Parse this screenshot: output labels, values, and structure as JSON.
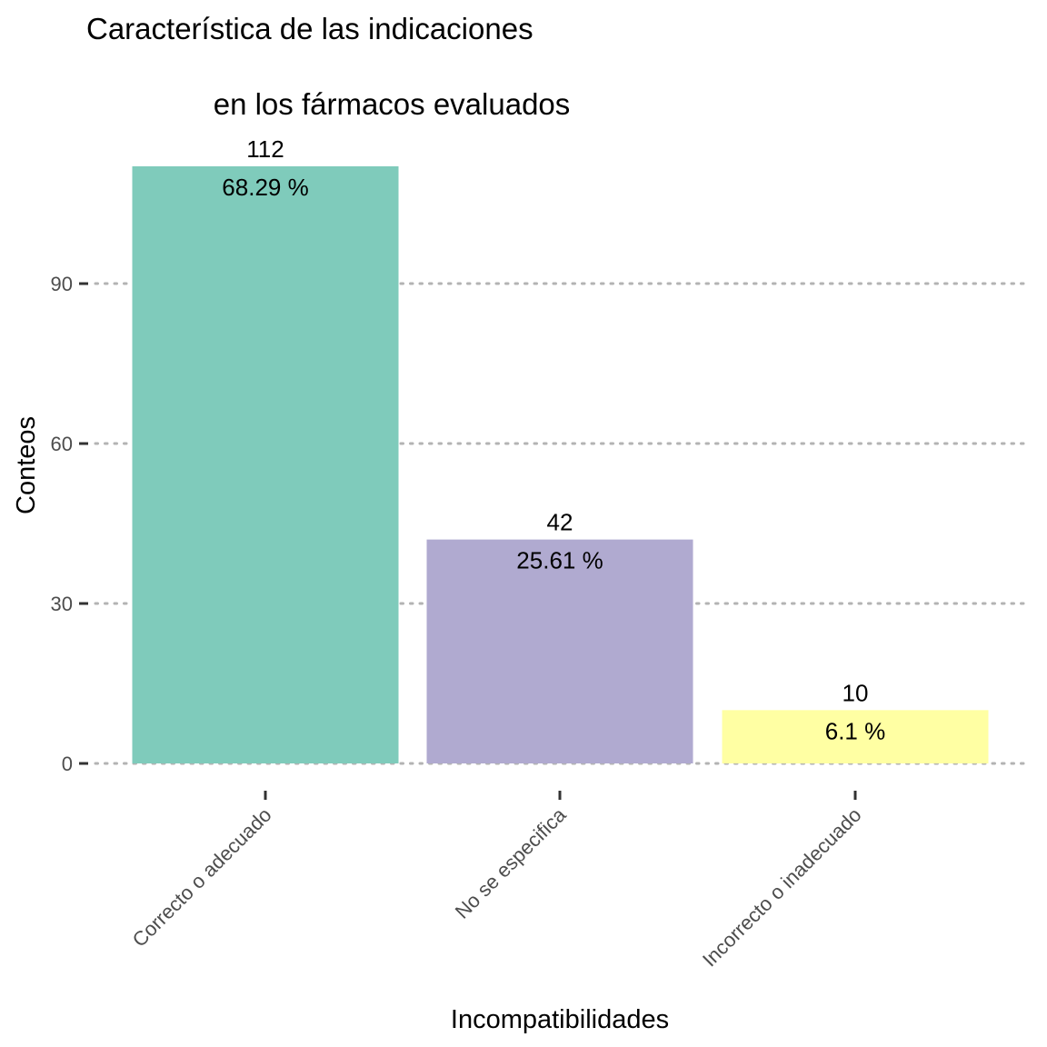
{
  "chart_data": {
    "type": "bar",
    "title_lines": [
      "Característica de las indicaciones",
      "en los fármacos evaluados"
    ],
    "xlabel": "Incompatibilidades",
    "ylabel": "Conteos",
    "categories": [
      "Correcto o adecuado",
      "No se especifica",
      "Incorrecto o inadecuado"
    ],
    "values": [
      112,
      42,
      10
    ],
    "percent_labels": [
      "68.29 %",
      "25.61 %",
      "6.1 %"
    ],
    "colors": [
      "#7fcbbb",
      "#b0aad0",
      "#ffffa3"
    ],
    "y_ticks": [
      0,
      30,
      60,
      90
    ],
    "ylim": [
      0,
      112
    ],
    "grid": "horizontal-dotted",
    "legend": "none"
  }
}
